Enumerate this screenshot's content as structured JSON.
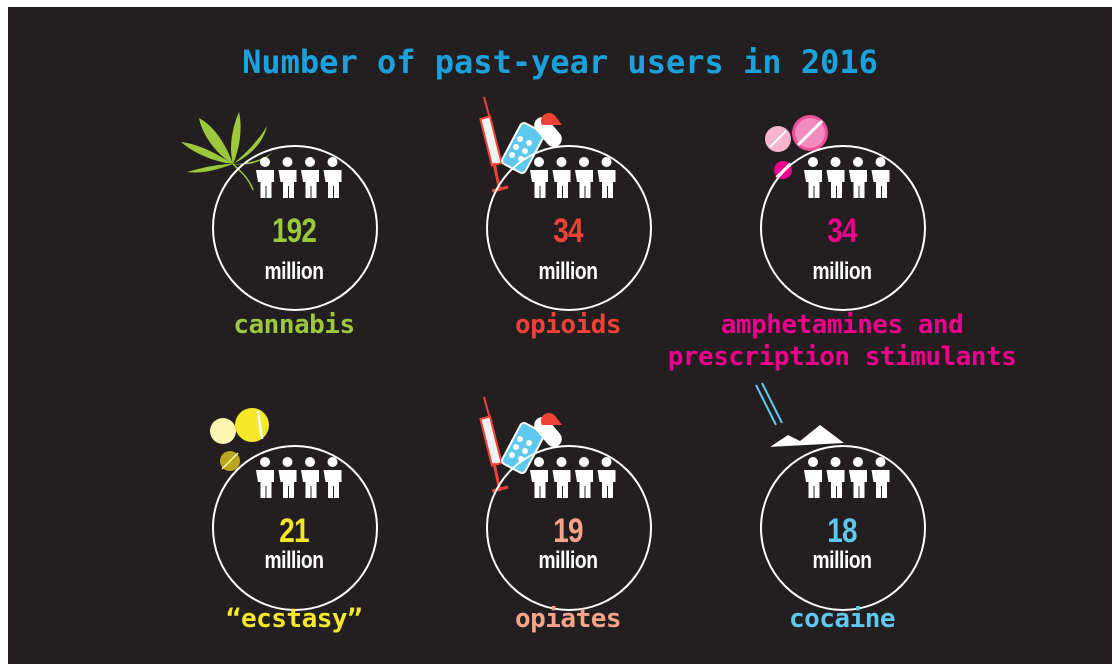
{
  "chart_data": {
    "type": "pictogram",
    "title": "Number of past-year users in 2016",
    "unit": "million",
    "items": [
      {
        "category": "cannabis",
        "value": 192,
        "color": "#9bc93b",
        "icon": "cannabis-leaf-icon"
      },
      {
        "category": "opioids",
        "value": 34,
        "color": "#ef4136",
        "icon": "syringe-pills-icon"
      },
      {
        "category": "amphetamines and prescription stimulants",
        "value": 34,
        "color": "#ec008c",
        "icon": "pink-pills-icon"
      },
      {
        "category": "“ecstasy”",
        "value": 21,
        "color": "#f5e72a",
        "icon": "yellow-pills-icon"
      },
      {
        "category": "opiates",
        "value": 19,
        "color": "#f6a38a",
        "icon": "syringe-pills-icon"
      },
      {
        "category": "cocaine",
        "value": 18,
        "color": "#5fc8ee",
        "icon": "cocaine-lines-icon"
      }
    ]
  },
  "colors": {
    "title": "#1ba2dc",
    "background": "#231f20",
    "ring": "#ffffff",
    "people": "#ffffff"
  }
}
